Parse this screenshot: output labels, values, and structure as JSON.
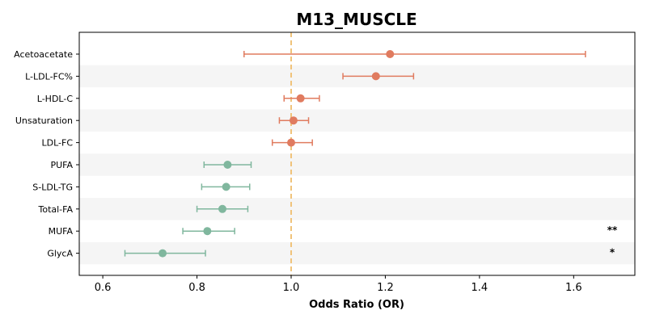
{
  "chart_data": {
    "type": "forest",
    "title": "M13_MUSCLE",
    "xlabel": "Odds Ratio (OR)",
    "xlim": [
      0.55,
      1.73
    ],
    "xticks": [
      "0.6",
      "0.8",
      "1.0",
      "1.2",
      "1.4",
      "1.6"
    ],
    "reference_line": 1.0,
    "grid": false,
    "colors": {
      "positive": "#E07B5F",
      "negative": "#80B79E",
      "reference": "#F0C37A",
      "band": "#F5F5F5"
    },
    "rows": [
      {
        "label": "Acetoacetate",
        "or": 1.21,
        "lo": 0.9,
        "hi": 1.625,
        "sig": ""
      },
      {
        "label": "L-LDL-FC%",
        "or": 1.18,
        "lo": 1.11,
        "hi": 1.26,
        "sig": ""
      },
      {
        "label": "L-HDL-C",
        "or": 1.02,
        "lo": 0.985,
        "hi": 1.06,
        "sig": ""
      },
      {
        "label": "Unsaturation",
        "or": 1.005,
        "lo": 0.975,
        "hi": 1.037,
        "sig": ""
      },
      {
        "label": "LDL-FC",
        "or": 1.0,
        "lo": 0.96,
        "hi": 1.045,
        "sig": ""
      },
      {
        "label": "PUFA",
        "or": 0.865,
        "lo": 0.815,
        "hi": 0.915,
        "sig": ""
      },
      {
        "label": "S-LDL-TG",
        "or": 0.862,
        "lo": 0.81,
        "hi": 0.912,
        "sig": ""
      },
      {
        "label": "Total-FA",
        "or": 0.854,
        "lo": 0.8,
        "hi": 0.908,
        "sig": ""
      },
      {
        "label": "MUFA",
        "or": 0.822,
        "lo": 0.77,
        "hi": 0.88,
        "sig": "**"
      },
      {
        "label": "GlycA",
        "or": 0.727,
        "lo": 0.647,
        "hi": 0.818,
        "sig": "*"
      }
    ]
  }
}
